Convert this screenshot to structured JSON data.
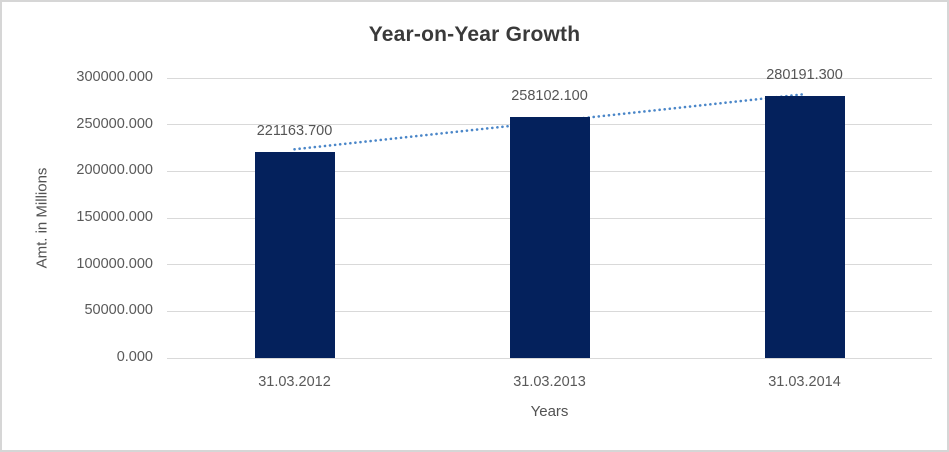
{
  "window": {
    "background_color": "#ffffff",
    "border_color": "#d6d6d6"
  },
  "chart_data": {
    "type": "bar",
    "title": "Year-on-Year Growth",
    "xlabel": "Years",
    "ylabel": "Amt. in Millions",
    "categories": [
      "31.03.2012",
      "31.03.2013",
      "31.03.2014"
    ],
    "series": [
      {
        "name": "Amt. in Millions",
        "values": [
          221163.7,
          258102.1,
          280191.3
        ],
        "value_labels": [
          "221163.700",
          "258102.100",
          "280191.300"
        ]
      }
    ],
    "ylim": [
      0,
      300000
    ],
    "y_ticks": [
      0,
      50000,
      100000,
      150000,
      200000,
      250000,
      300000
    ],
    "y_tick_labels": [
      "0.000",
      "50000.000",
      "100000.000",
      "150000.000",
      "200000.000",
      "250000.000",
      "300000.000"
    ],
    "grid": true,
    "legend": "none",
    "colors": {
      "bar": "#04215c",
      "trendline": "#4a86c8",
      "gridline": "#d9d9d9",
      "title_text": "#3a3a3a",
      "axis_text": "#595959"
    },
    "trendline": {
      "shape": "linear",
      "style": "dotted"
    }
  }
}
